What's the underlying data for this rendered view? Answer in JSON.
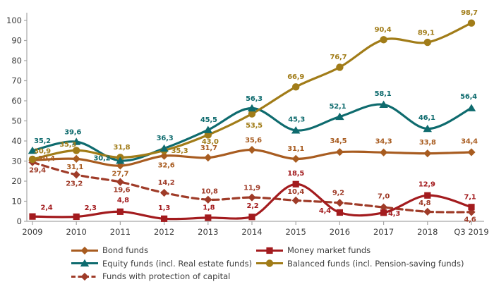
{
  "chart_data": {
    "type": "line",
    "title": "",
    "categories": [
      "2009",
      "2010",
      "2011",
      "2012",
      "2013",
      "2014",
      "2015",
      "2016",
      "2017",
      "2018",
      "Q3 2019"
    ],
    "ylim": [
      0,
      100
    ],
    "ytick_step": 10,
    "grid": false,
    "decimal_separator": ",",
    "legend_position": "bottom",
    "legend_rows": [
      [
        0,
        1
      ],
      [
        2,
        3
      ],
      [
        4
      ]
    ],
    "axis_color": "#A6A6A6",
    "tick_label_color": "#3A3A3A",
    "legend_text_color": "#3D3D3D",
    "series": [
      {
        "name": "Bond funds",
        "color": "#A85C20",
        "marker": "diamond",
        "line_style": "solid",
        "values": [
          30.4,
          31.1,
          27.7,
          32.6,
          31.7,
          35.6,
          31.1,
          34.5,
          34.3,
          33.8,
          34.4
        ],
        "label_offsets": [
          [
            20,
            -3
          ],
          [
            -2,
            11
          ],
          [
            0,
            11
          ],
          [
            3,
            13
          ],
          [
            1,
            -14
          ],
          [
            2,
            -14
          ],
          [
            0,
            -15
          ],
          [
            -2,
            -16
          ],
          [
            0,
            -16
          ],
          [
            0,
            -16
          ],
          [
            -3,
            -16
          ]
        ]
      },
      {
        "name": "Money market funds",
        "color": "#A31B1E",
        "marker": "square",
        "line_style": "solid",
        "values": [
          2.4,
          2.3,
          4.8,
          1.3,
          1.8,
          2.2,
          18.5,
          4.4,
          4.3,
          12.9,
          7.1
        ],
        "label_offsets": [
          [
            20,
            -13
          ],
          [
            20,
            -13
          ],
          [
            4,
            -17
          ],
          [
            0,
            -16
          ],
          [
            1,
            -15
          ],
          [
            1,
            -16
          ],
          [
            0,
            -16
          ],
          [
            -21,
            -3
          ],
          [
            15,
            1
          ],
          [
            -1,
            -16
          ],
          [
            -2,
            -15
          ]
        ]
      },
      {
        "name": "Equity funds (incl. Real estate funds)",
        "color": "#0E6B6E",
        "marker": "triangle",
        "line_style": "solid",
        "values": [
          35.2,
          39.6,
          30.2,
          36.3,
          45.5,
          56.3,
          45.3,
          52.1,
          58.1,
          46.1,
          56.4
        ],
        "label_offsets": [
          [
            14,
            -14
          ],
          [
            -5,
            -14
          ],
          [
            -26,
            -4
          ],
          [
            1,
            -15
          ],
          [
            1,
            -15
          ],
          [
            3,
            -14
          ],
          [
            1,
            -16
          ],
          [
            -3,
            -15
          ],
          [
            -1,
            -16
          ],
          [
            -1,
            -16
          ],
          [
            -4,
            -17
          ]
        ]
      },
      {
        "name": "Balanced funds (incl. Pension-saving funds)",
        "color": "#A17C18",
        "marker": "circle",
        "line_style": "solid",
        "values": [
          30.9,
          35.3,
          31.8,
          35.3,
          43.0,
          53.5,
          66.9,
          76.7,
          90.4,
          89.1,
          98.7
        ],
        "label_offsets": [
          [
            14,
            -12
          ],
          [
            -12,
            -9
          ],
          [
            2,
            -15
          ],
          [
            22,
            0
          ],
          [
            3,
            9
          ],
          [
            3,
            16
          ],
          [
            0,
            -15
          ],
          [
            -2,
            -15
          ],
          [
            -1,
            -15
          ],
          [
            -2,
            -14
          ],
          [
            -3,
            -15
          ]
        ]
      },
      {
        "name": "Funds with protection of capital",
        "color": "#9F3B28",
        "marker": "diamond",
        "line_style": "dashed",
        "values": [
          29.4,
          23.2,
          19.6,
          14.2,
          10.8,
          11.9,
          10.4,
          9.2,
          7.0,
          4.8,
          4.6
        ],
        "label_offsets": [
          [
            7,
            11
          ],
          [
            -3,
            12
          ],
          [
            2,
            11
          ],
          [
            3,
            -15
          ],
          [
            2,
            -12
          ],
          [
            0,
            -14
          ],
          [
            0,
            -13
          ],
          [
            -2,
            -15
          ],
          [
            0,
            -16
          ],
          [
            -4,
            -13
          ],
          [
            -2,
            10
          ]
        ]
      }
    ]
  }
}
